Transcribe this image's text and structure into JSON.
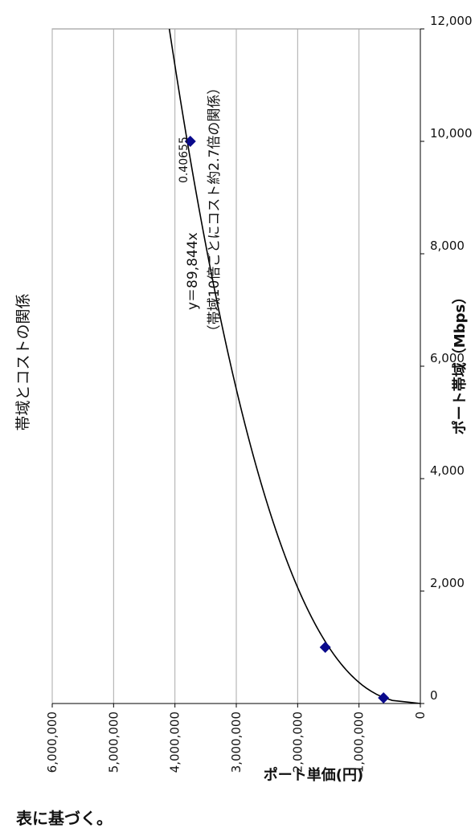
{
  "chart_data": {
    "type": "scatter",
    "title": "帯域とコストの関係",
    "xlabel": "ポート帯域（Mbps）",
    "ylabel": "ポート単価(円)",
    "xlim": [
      0,
      12000
    ],
    "ylim": [
      0,
      6000000
    ],
    "x_ticks": [
      "0",
      "2,000",
      "4,000",
      "6,000",
      "8,000",
      "10,000",
      "12,000"
    ],
    "y_ticks": [
      "0",
      "1,000,000",
      "2,000,000",
      "3,000,000",
      "4,000,000",
      "5,000,000",
      "6,000,000"
    ],
    "grid": "horizontal",
    "marker_color": "#0a0a8c",
    "series": [
      {
        "x": [
          100,
          1000,
          10000
        ],
        "y": [
          600000,
          1550000,
          3750000
        ]
      }
    ],
    "trendline": {
      "type": "power",
      "a": 89844,
      "b": 0.40655
    },
    "annotation": {
      "equation": "y＝89,844x",
      "exponent": "0.40655",
      "note": "（帯域10倍ごとにコスト約2.7倍の関係）"
    }
  },
  "footer_note": "表に基づく。"
}
